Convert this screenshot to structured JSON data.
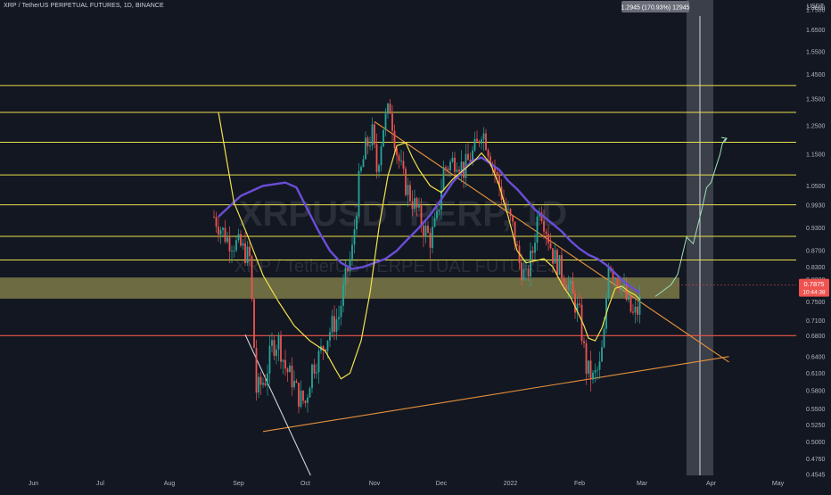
{
  "header": {
    "title": "XRP / TetherUS PERPETUAL FUTURES, 1D, BINANCE"
  },
  "currency": "USDT",
  "watermark": {
    "symbol": "XRPUSDTPERP, 1D",
    "name": "XRP / TetherUS PERPETUAL FUTURES"
  },
  "measure_label": "1.2945 (170.93%) 12945",
  "colors": {
    "background": "#131722",
    "candle_up": "#26a69a",
    "candle_down": "#ef5350",
    "level_line": "#e8e04a",
    "support_line": "#f0564b",
    "trend_line": "#e8923a",
    "ma_fast": "#f2e34c",
    "ma_slow": "#6a4ed6",
    "zone_fill": "#d9d26a",
    "projection": "#9fe0b6"
  },
  "chart_data": {
    "type": "candlestick",
    "title": "XRP / TetherUS PERPETUAL FUTURES, 1D, BINANCE",
    "yscale": "log",
    "ylim": [
      0.434,
      1.8
    ],
    "x_ticks": [
      "Jun",
      "Jul",
      "Aug",
      "Sep",
      "Oct",
      "Nov",
      "Dec",
      "2022",
      "Feb",
      "Mar",
      "Apr",
      "May"
    ],
    "y_ticks": [
      1.75,
      1.65,
      1.55,
      1.45,
      1.35,
      1.25,
      1.15,
      1.05,
      0.993,
      0.93,
      0.87,
      0.83,
      0.8,
      0.75,
      0.71,
      0.68,
      0.64,
      0.61,
      0.58,
      0.55,
      0.525,
      0.5,
      0.476,
      0.4545
    ],
    "y_tick_labels": [
      "1.7500",
      "1.6500",
      "1.5500",
      "1.4500",
      "1.3500",
      "1.2500",
      "1.1500",
      "1.0500",
      "0.9930",
      "0.9300",
      "0.8700",
      "0.8300",
      "0.8000",
      "0.7500",
      "0.7100",
      "0.6800",
      "0.6400",
      "0.6100",
      "0.5800",
      "0.5500",
      "0.5250",
      "0.5000",
      "0.4760",
      "0.4545"
    ],
    "levels": [
      {
        "value": 1.4045,
        "label": "1.4045"
      },
      {
        "value": 1.2995,
        "label": "1.2995"
      },
      {
        "value": 1.1914,
        "label": "1.1914"
      },
      {
        "value": 1.084,
        "label": "1.0840"
      },
      {
        "value": 0.9939,
        "label": "0.9939"
      },
      {
        "value": 0.9071,
        "label": "0.9071"
      },
      {
        "value": 0.847,
        "label": "0.8470"
      }
    ],
    "support": {
      "value": 0.6801,
      "label": "0.6801"
    },
    "current_price": {
      "value": 0.7875,
      "label": "0.7875",
      "countdown": "10:44:38"
    },
    "zone": {
      "low": 0.757,
      "high": 0.805
    },
    "measure_box": {
      "from_x": 140,
      "to_x": 152,
      "low": 0.434,
      "high": 1.8
    },
    "axis_top_label": "1.8000",
    "trendlines": [
      {
        "name": "descending",
        "points": [
          [
            0,
            1.265
          ],
          [
            159,
            0.63
          ]
        ]
      },
      {
        "name": "ascending",
        "points": [
          [
            -50,
            0.515
          ],
          [
            159,
            0.64
          ]
        ]
      },
      {
        "name": "early-descending",
        "points": [
          [
            -58,
            0.682
          ],
          [
            -27,
            0.443
          ]
        ]
      }
    ],
    "projection": [
      [
        126,
        0.762
      ],
      [
        133,
        0.788
      ],
      [
        136,
        0.812
      ],
      [
        138,
        0.857
      ],
      [
        140,
        0.905
      ],
      [
        143,
        0.888
      ],
      [
        145,
        0.935
      ],
      [
        147,
        0.985
      ],
      [
        149,
        1.045
      ],
      [
        151,
        1.06
      ],
      [
        153,
        1.105
      ],
      [
        155,
        1.15
      ],
      [
        156,
        1.185
      ],
      [
        157,
        1.2
      ],
      [
        158,
        1.205
      ]
    ],
    "ma_fast": [
      [
        -70,
        1.3
      ],
      [
        -63,
        1.0
      ],
      [
        -57,
        0.91
      ],
      [
        -50,
        0.81
      ],
      [
        -43,
        0.75
      ],
      [
        -36,
        0.7
      ],
      [
        -29,
        0.67
      ],
      [
        -22,
        0.65
      ],
      [
        -18,
        0.62
      ],
      [
        -15,
        0.6
      ],
      [
        -11,
        0.61
      ],
      [
        -6,
        0.67
      ],
      [
        -2,
        0.77
      ],
      [
        2,
        0.93
      ],
      [
        6,
        1.08
      ],
      [
        10,
        1.18
      ],
      [
        14,
        1.19
      ],
      [
        17,
        1.14
      ],
      [
        20,
        1.1
      ],
      [
        25,
        1.05
      ],
      [
        30,
        1.03
      ],
      [
        35,
        1.07
      ],
      [
        40,
        1.1
      ],
      [
        45,
        1.13
      ],
      [
        48,
        1.155
      ],
      [
        52,
        1.12
      ],
      [
        56,
        1.05
      ],
      [
        60,
        0.96
      ],
      [
        64,
        0.87
      ],
      [
        68,
        0.84
      ],
      [
        72,
        0.845
      ],
      [
        76,
        0.85
      ],
      [
        80,
        0.83
      ],
      [
        84,
        0.79
      ],
      [
        88,
        0.76
      ],
      [
        91,
        0.73
      ],
      [
        94,
        0.7
      ],
      [
        96,
        0.675
      ],
      [
        99,
        0.67
      ],
      [
        102,
        0.695
      ],
      [
        105,
        0.74
      ],
      [
        108,
        0.78
      ],
      [
        111,
        0.785
      ],
      [
        114,
        0.773
      ],
      [
        117,
        0.765
      ],
      [
        119,
        0.755
      ]
    ],
    "ma_slow": [
      [
        -70,
        0.96
      ],
      [
        -60,
        1.02
      ],
      [
        -50,
        1.05
      ],
      [
        -40,
        1.06
      ],
      [
        -35,
        1.045
      ],
      [
        -30,
        0.98
      ],
      [
        -25,
        0.92
      ],
      [
        -20,
        0.87
      ],
      [
        -15,
        0.84
      ],
      [
        -10,
        0.825
      ],
      [
        -5,
        0.83
      ],
      [
        0,
        0.84
      ],
      [
        5,
        0.85
      ],
      [
        10,
        0.87
      ],
      [
        15,
        0.9
      ],
      [
        20,
        0.93
      ],
      [
        25,
        0.965
      ],
      [
        30,
        1.01
      ],
      [
        35,
        1.06
      ],
      [
        40,
        1.1
      ],
      [
        44,
        1.13
      ],
      [
        48,
        1.14
      ],
      [
        52,
        1.12
      ],
      [
        56,
        1.1
      ],
      [
        60,
        1.065
      ],
      [
        64,
        1.04
      ],
      [
        68,
        1.01
      ],
      [
        72,
        0.98
      ],
      [
        76,
        0.96
      ],
      [
        80,
        0.94
      ],
      [
        84,
        0.92
      ],
      [
        88,
        0.895
      ],
      [
        92,
        0.875
      ],
      [
        96,
        0.86
      ],
      [
        100,
        0.85
      ],
      [
        104,
        0.835
      ],
      [
        108,
        0.815
      ],
      [
        112,
        0.795
      ],
      [
        116,
        0.78
      ],
      [
        119,
        0.77
      ]
    ],
    "candle_anchors": [
      [
        -72,
        0.96
      ],
      [
        -66,
        0.9
      ],
      [
        -60,
        0.88
      ],
      [
        -56,
        0.85
      ],
      [
        -53,
        0.58
      ],
      [
        -49,
        0.6
      ],
      [
        -46,
        0.66
      ],
      [
        -43,
        0.67
      ],
      [
        -40,
        0.62
      ],
      [
        -37,
        0.6
      ],
      [
        -34,
        0.57
      ],
      [
        -31,
        0.56
      ],
      [
        -28,
        0.62
      ],
      [
        -25,
        0.64
      ],
      [
        -22,
        0.67
      ],
      [
        -19,
        0.7
      ],
      [
        -16,
        0.72
      ],
      [
        -13,
        0.8
      ],
      [
        -10,
        0.87
      ],
      [
        -7,
        1.06
      ],
      [
        -4,
        1.17
      ],
      [
        -1,
        1.22
      ],
      [
        1,
        1.1
      ],
      [
        4,
        1.25
      ],
      [
        7,
        1.32
      ],
      [
        10,
        1.16
      ],
      [
        13,
        1.07
      ],
      [
        16,
        1.02
      ],
      [
        19,
        0.98
      ],
      [
        22,
        0.93
      ],
      [
        25,
        0.9
      ],
      [
        28,
        0.95
      ],
      [
        31,
        1.1
      ],
      [
        34,
        1.12
      ],
      [
        37,
        1.14
      ],
      [
        40,
        1.1
      ],
      [
        43,
        1.14
      ],
      [
        46,
        1.18
      ],
      [
        48,
        1.24
      ],
      [
        50,
        1.2
      ],
      [
        53,
        1.12
      ],
      [
        56,
        1.05
      ],
      [
        59,
        0.98
      ],
      [
        62,
        0.93
      ],
      [
        65,
        0.84
      ],
      [
        68,
        0.8
      ],
      [
        71,
        0.87
      ],
      [
        74,
        1.0
      ],
      [
        77,
        0.93
      ],
      [
        80,
        0.86
      ],
      [
        83,
        0.83
      ],
      [
        86,
        0.8
      ],
      [
        89,
        0.76
      ],
      [
        92,
        0.72
      ],
      [
        95,
        0.62
      ],
      [
        98,
        0.6
      ],
      [
        101,
        0.62
      ],
      [
        103,
        0.68
      ],
      [
        105,
        0.85
      ],
      [
        107,
        0.82
      ],
      [
        110,
        0.8
      ],
      [
        112,
        0.77
      ],
      [
        114,
        0.74
      ],
      [
        116,
        0.72
      ],
      [
        118,
        0.73
      ],
      [
        120,
        0.77
      ]
    ]
  }
}
